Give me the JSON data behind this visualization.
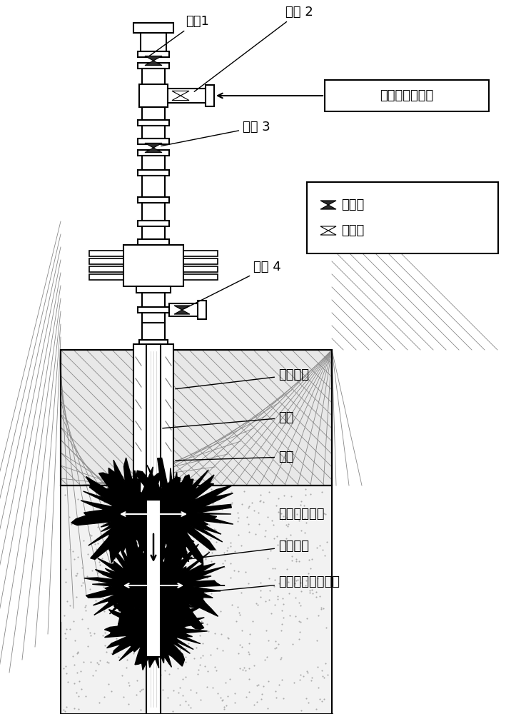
{
  "bg_color": "#ffffff",
  "line_color": "#000000",
  "labels": {
    "valve1": "阀门1",
    "valve2": "阀门 2",
    "valve3": "阀门 3",
    "valve4": "阀门 4",
    "co2_pump": "二氧化碳增压泵",
    "cement": "水泥返高",
    "tubing": "油管",
    "casing": "套管",
    "hpco2": "高压二氧化碳",
    "fracture": "压裂裂缝",
    "co2zone": "二氧化碳注入区域",
    "legend_closed": "阀门关",
    "legend_open": "阀门开"
  },
  "figsize": [
    7.3,
    10.0
  ],
  "dpi": 100
}
